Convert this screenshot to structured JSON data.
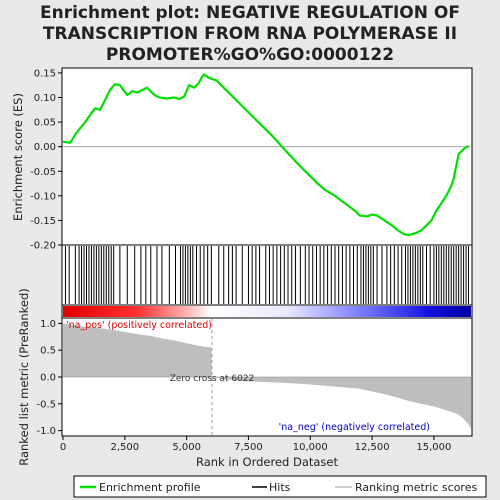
{
  "title_lines": [
    "Enrichment plot: NEGATIVE REGULATION OF",
    "TRANSCRIPTION FROM RNA POLYMERASE II",
    "PROMOTER%GO%GO:0000122"
  ],
  "colors": {
    "enrichment": "#00e000",
    "hits": "#000000",
    "ranking": "#bebebe",
    "positive_label": "#e00000",
    "negative_label": "#0000c0",
    "panel_bg": "#ffffff",
    "outer_bg": "#e9e9e9"
  },
  "chart_data": [
    {
      "type": "line",
      "name": "enrichment-profile",
      "ylabel": "Enrichment score (ES)",
      "ylim": [
        -0.2,
        0.16
      ],
      "xlim": [
        0,
        16500
      ],
      "yticks": [
        0.15,
        0.1,
        0.05,
        0.0,
        -0.05,
        -0.1,
        -0.15,
        -0.2
      ],
      "ytick_labels": [
        "0.15",
        "0.10",
        "0.05",
        "0.00",
        "-0.05",
        "-0.10",
        "-0.15",
        "-0.20"
      ],
      "series": [
        {
          "name": "Enrichment profile",
          "x": [
            0,
            300,
            500,
            700,
            900,
            1100,
            1300,
            1500,
            1700,
            1900,
            2100,
            2300,
            2600,
            2800,
            3000,
            3200,
            3400,
            3700,
            3900,
            4200,
            4500,
            4700,
            4900,
            5100,
            5300,
            5500,
            5600,
            5700,
            5900,
            6000,
            6200,
            6500,
            7000,
            7500,
            8000,
            8500,
            9000,
            9500,
            10000,
            10300,
            10600,
            11000,
            11400,
            11800,
            12000,
            12300,
            12500,
            12700,
            13000,
            13300,
            13600,
            13800,
            14000,
            14300,
            14500,
            14700,
            14900,
            15100,
            15300,
            15500,
            15700,
            15800,
            15900,
            16000,
            16200,
            16400
          ],
          "y": [
            0.01,
            0.008,
            0.025,
            0.038,
            0.05,
            0.065,
            0.078,
            0.075,
            0.095,
            0.115,
            0.127,
            0.125,
            0.105,
            0.113,
            0.11,
            0.115,
            0.12,
            0.105,
            0.1,
            0.098,
            0.1,
            0.097,
            0.102,
            0.125,
            0.12,
            0.13,
            0.14,
            0.147,
            0.14,
            0.138,
            0.135,
            0.12,
            0.095,
            0.07,
            0.045,
            0.02,
            -0.008,
            -0.035,
            -0.06,
            -0.075,
            -0.088,
            -0.1,
            -0.115,
            -0.13,
            -0.14,
            -0.142,
            -0.138,
            -0.14,
            -0.15,
            -0.16,
            -0.172,
            -0.178,
            -0.18,
            -0.175,
            -0.17,
            -0.16,
            -0.15,
            -0.13,
            -0.115,
            -0.1,
            -0.08,
            -0.065,
            -0.04,
            -0.015,
            -0.005,
            0.002
          ]
        }
      ]
    },
    {
      "type": "scatter",
      "name": "hits",
      "series": [
        {
          "name": "Hits",
          "x": [
            100,
            250,
            500,
            650,
            750,
            850,
            950,
            1050,
            1150,
            1250,
            1350,
            1450,
            1550,
            1650,
            1750,
            1850,
            1950,
            2050,
            2300,
            2600,
            2900,
            3150,
            3350,
            3550,
            3800,
            4000,
            4300,
            4550,
            4750,
            4850,
            4950,
            5050,
            5150,
            5250,
            5400,
            5550,
            5700,
            5850,
            6000,
            6300,
            6500,
            6700,
            6850,
            7000,
            7250,
            7500,
            7650,
            7800,
            7950,
            8200,
            8350,
            8500,
            8650,
            8800,
            8950,
            9100,
            9250,
            9400,
            9600,
            9800,
            9950,
            10100,
            10250,
            10400,
            10550,
            10700,
            10850,
            11000,
            11150,
            11300,
            11450,
            11600,
            11750,
            11900,
            12050,
            12150,
            12250,
            12350,
            12450,
            12550,
            12700,
            12900,
            13100,
            13250,
            13400,
            13550,
            13700,
            13850,
            13950,
            14050,
            14150,
            14250,
            14350,
            14450,
            14550,
            14700,
            14850,
            15000,
            15100,
            15200,
            15300,
            15400,
            15500,
            15600,
            15700,
            15800,
            15900,
            16000,
            16100,
            16200,
            16300,
            16400
          ]
        }
      ]
    },
    {
      "type": "area",
      "name": "ranking-metric",
      "ylabel": "Ranked list metric (PreRanked)",
      "xlabel": "Rank in Ordered Dataset",
      "ylim": [
        -1.1,
        1.1
      ],
      "xlim": [
        0,
        16500
      ],
      "yticks": [
        1.0,
        0.5,
        0.0,
        -0.5,
        -1.0
      ],
      "ytick_labels": [
        "1.0",
        "0.5",
        "0.0",
        "-0.5",
        "-1.0"
      ],
      "xticks": [
        0,
        2500,
        5000,
        7500,
        10000,
        12500,
        15000
      ],
      "xtick_labels": [
        "0",
        "2,500",
        "5,000",
        "7,500",
        "10,000",
        "12,500",
        "15,000"
      ],
      "zero_cross": 6022,
      "zero_cross_label": "Zero cross at 6022",
      "positive_label": "'na_pos' (positively correlated)",
      "negative_label": "'na_neg' (negatively correlated)",
      "series": [
        {
          "name": "Ranking metric scores",
          "x": [
            0,
            200,
            500,
            1000,
            1500,
            2000,
            2500,
            3000,
            3500,
            4000,
            4500,
            5000,
            5500,
            6000,
            6022,
            7000,
            8000,
            9000,
            10000,
            11000,
            12000,
            12500,
            13000,
            13500,
            14000,
            14500,
            15000,
            15500,
            16000,
            16200,
            16400,
            16500
          ],
          "y": [
            1.0,
            0.98,
            0.96,
            0.93,
            0.91,
            0.88,
            0.84,
            0.8,
            0.77,
            0.72,
            0.68,
            0.63,
            0.58,
            0.55,
            0.0,
            -0.07,
            -0.09,
            -0.11,
            -0.14,
            -0.18,
            -0.22,
            -0.27,
            -0.32,
            -0.38,
            -0.45,
            -0.5,
            -0.55,
            -0.62,
            -0.7,
            -0.78,
            -0.88,
            -0.96
          ]
        }
      ]
    }
  ],
  "legend": {
    "items": [
      {
        "label": "Enrichment profile",
        "color": "#00e000"
      },
      {
        "label": "Hits",
        "color": "#000000"
      },
      {
        "label": "Ranking metric scores",
        "color": "#bebebe"
      }
    ]
  }
}
